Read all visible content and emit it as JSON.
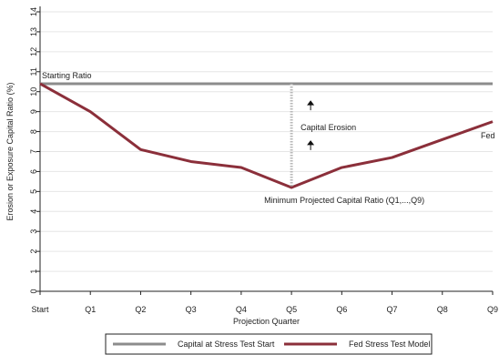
{
  "chart_data": {
    "type": "line",
    "title": "",
    "xlabel": "Projection Quarter",
    "ylabel": "Erosion or Exposure Capital Ratio (%)",
    "categories": [
      "Start",
      "Q1",
      "Q2",
      "Q3",
      "Q4",
      "Q5",
      "Q6",
      "Q7",
      "Q8",
      "Q9"
    ],
    "ylim": [
      0,
      14
    ],
    "yticks": [
      0,
      1,
      2,
      3,
      4,
      5,
      6,
      7,
      8,
      9,
      10,
      11,
      12,
      13,
      14
    ],
    "grid": true,
    "series": [
      {
        "name": "Capital at Stress Test Start",
        "color": "#8c8c8c",
        "values": [
          10.4,
          10.4,
          10.4,
          10.4,
          10.4,
          10.4,
          10.4,
          10.4,
          10.4,
          10.4
        ]
      },
      {
        "name": "Fed Stress Test Model",
        "color": "#8b2f3a",
        "values": [
          10.4,
          9.0,
          7.1,
          6.5,
          6.2,
          5.2,
          6.2,
          6.7,
          7.6,
          8.5
        ]
      }
    ],
    "legend": {
      "placement": "bottom",
      "items": [
        "Capital at Stress Test Start",
        "Fed Stress Test Model"
      ]
    },
    "annotations": {
      "starting_ratio": "Starting Ratio",
      "capital_erosion": "Capital Erosion",
      "fed": "Fed",
      "minimum": "Minimum Projected Capital Ratio (Q1,...,Q9)",
      "erosion_at": "Q5",
      "erosion_from": 10.4,
      "erosion_to": 5.2
    }
  }
}
